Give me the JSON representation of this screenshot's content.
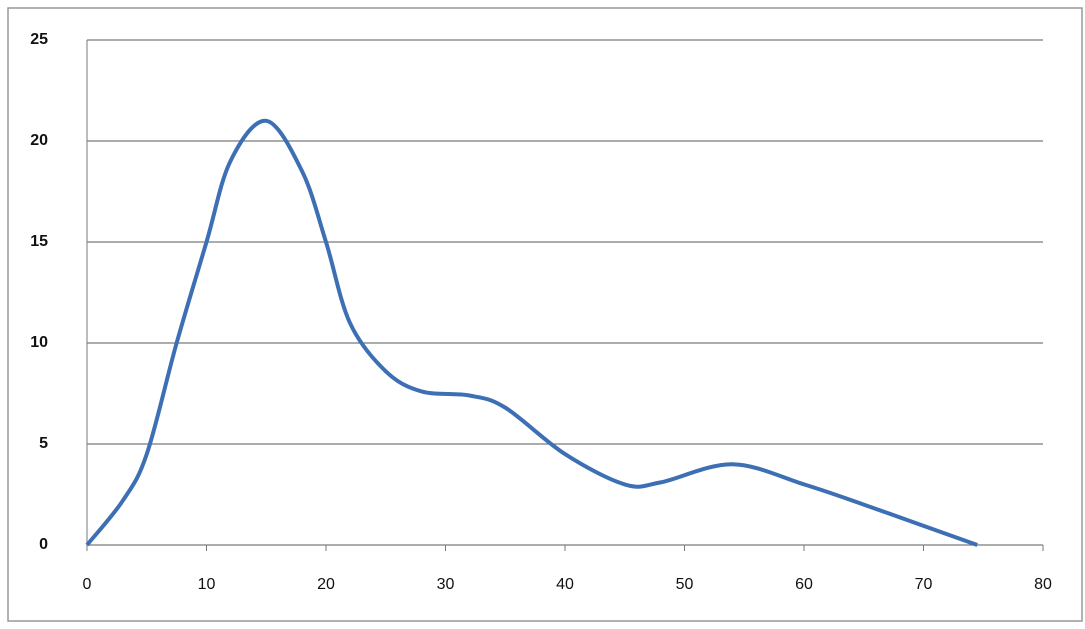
{
  "chart_data": {
    "type": "line",
    "x": [
      0,
      3,
      5,
      7.5,
      10,
      12,
      15,
      18,
      20,
      22,
      25,
      28,
      32,
      35,
      40,
      45,
      48,
      54,
      60,
      65,
      74.5
    ],
    "series": [
      {
        "color": "#3c6fb4",
        "values": [
          0,
          2.2,
          4.5,
          10,
          15,
          19,
          21,
          18.5,
          15,
          11,
          8.6,
          7.6,
          7.4,
          6.8,
          4.5,
          3,
          3.1,
          4,
          3,
          2,
          0
        ]
      }
    ],
    "xlim": [
      0,
      80
    ],
    "xticks": [
      0,
      10,
      20,
      30,
      40,
      50,
      60,
      70,
      80
    ],
    "ylim": [
      0,
      25
    ],
    "yticks": [
      0,
      5,
      10,
      15,
      20,
      25
    ],
    "grid": true
  }
}
